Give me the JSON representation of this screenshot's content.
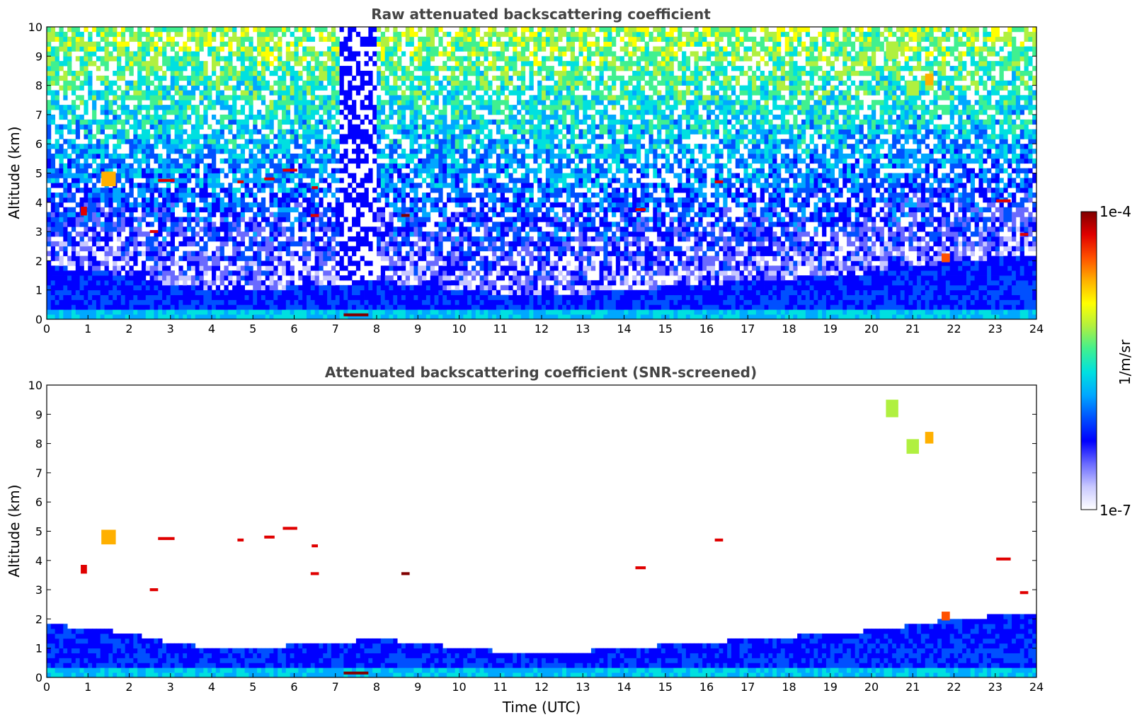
{
  "colors": {
    "colormap": [
      "#ffffff",
      "#c8c8ff",
      "#6a6aff",
      "#0000ff",
      "#0050ff",
      "#00a8ff",
      "#00e0e0",
      "#40f090",
      "#b0f040",
      "#ffff00",
      "#ffb000",
      "#ff5000",
      "#e00000",
      "#800000"
    ],
    "background": "#ffffff",
    "title": "#444444"
  },
  "chart_data": [
    {
      "type": "heatmap",
      "title": "Raw attenuated backscattering coefficient",
      "xlabel": "",
      "ylabel": "Altitude (km)",
      "xlim": [
        0,
        24
      ],
      "ylim": [
        0,
        10
      ],
      "xticks": [
        "0",
        "1",
        "2",
        "3",
        "4",
        "5",
        "6",
        "7",
        "8",
        "9",
        "10",
        "11",
        "12",
        "13",
        "14",
        "15",
        "16",
        "17",
        "18",
        "19",
        "20",
        "21",
        "22",
        "23",
        "24"
      ],
      "yticks": [
        "0",
        "1",
        "2",
        "3",
        "4",
        "5",
        "6",
        "7",
        "8",
        "9",
        "10"
      ],
      "boundary_layer_top_km": [
        [
          0,
          1.8
        ],
        [
          1,
          1.7
        ],
        [
          2,
          1.5
        ],
        [
          3,
          1.2
        ],
        [
          4,
          1.0
        ],
        [
          5,
          1.0
        ],
        [
          6,
          1.1
        ],
        [
          7,
          1.2
        ],
        [
          8,
          1.3
        ],
        [
          9,
          1.2
        ],
        [
          10,
          1.0
        ],
        [
          11,
          0.9
        ],
        [
          12,
          0.9
        ],
        [
          13,
          0.9
        ],
        [
          14,
          1.0
        ],
        [
          15,
          1.1
        ],
        [
          16,
          1.2
        ],
        [
          17,
          1.3
        ],
        [
          18,
          1.4
        ],
        [
          19,
          1.5
        ],
        [
          20,
          1.6
        ],
        [
          21,
          1.8
        ],
        [
          22,
          2.0
        ],
        [
          23,
          2.1
        ],
        [
          23.8,
          2.2
        ]
      ],
      "cloud_layers": [
        {
          "t": 0.9,
          "alt": 3.7,
          "dt": 0.15,
          "dz": 0.3,
          "level": 12
        },
        {
          "t": 1.5,
          "alt": 4.8,
          "dt": 0.35,
          "dz": 0.5,
          "level": 10
        },
        {
          "t": 2.9,
          "alt": 4.75,
          "dt": 0.4,
          "dz": 0.1,
          "level": 12
        },
        {
          "t": 2.6,
          "alt": 3.0,
          "dt": 0.2,
          "dz": 0.1,
          "level": 12
        },
        {
          "t": 4.7,
          "alt": 4.7,
          "dt": 0.15,
          "dz": 0.1,
          "level": 12
        },
        {
          "t": 5.4,
          "alt": 4.8,
          "dt": 0.25,
          "dz": 0.1,
          "level": 12
        },
        {
          "t": 5.9,
          "alt": 5.1,
          "dt": 0.35,
          "dz": 0.1,
          "level": 12
        },
        {
          "t": 6.5,
          "alt": 4.5,
          "dt": 0.15,
          "dz": 0.1,
          "level": 12
        },
        {
          "t": 6.5,
          "alt": 3.55,
          "dt": 0.2,
          "dz": 0.1,
          "level": 12
        },
        {
          "t": 8.7,
          "alt": 3.55,
          "dt": 0.2,
          "dz": 0.1,
          "level": 13
        },
        {
          "t": 14.4,
          "alt": 3.75,
          "dt": 0.25,
          "dz": 0.1,
          "level": 12
        },
        {
          "t": 16.3,
          "alt": 4.7,
          "dt": 0.2,
          "dz": 0.1,
          "level": 12
        },
        {
          "t": 23.2,
          "alt": 4.05,
          "dt": 0.35,
          "dz": 0.1,
          "level": 12
        },
        {
          "t": 23.7,
          "alt": 2.9,
          "dt": 0.2,
          "dz": 0.1,
          "level": 12
        },
        {
          "t": 21.8,
          "alt": 2.1,
          "dt": 0.2,
          "dz": 0.3,
          "level": 11
        },
        {
          "t": 20.5,
          "alt": 9.2,
          "dt": 0.3,
          "dz": 0.6,
          "level": 8
        },
        {
          "t": 21.0,
          "alt": 7.9,
          "dt": 0.3,
          "dz": 0.5,
          "level": 8
        },
        {
          "t": 21.4,
          "alt": 8.2,
          "dt": 0.2,
          "dz": 0.4,
          "level": 10
        },
        {
          "t": 7.5,
          "alt": 0.15,
          "dt": 0.6,
          "dz": 0.1,
          "level": 13
        }
      ]
    },
    {
      "type": "heatmap",
      "title": "Attenuated backscattering coefficient (SNR-screened)",
      "xlabel": "Time (UTC)",
      "ylabel": "Altitude (km)",
      "xlim": [
        0,
        24
      ],
      "ylim": [
        0,
        10
      ],
      "xticks": [
        "0",
        "1",
        "2",
        "3",
        "4",
        "5",
        "6",
        "7",
        "8",
        "9",
        "10",
        "11",
        "12",
        "13",
        "14",
        "15",
        "16",
        "17",
        "18",
        "19",
        "20",
        "21",
        "22",
        "23",
        "24"
      ],
      "yticks": [
        "0",
        "1",
        "2",
        "3",
        "4",
        "5",
        "6",
        "7",
        "8",
        "9",
        "10"
      ]
    }
  ],
  "colorbar": {
    "max_label": "1e-4",
    "min_label": "1e-7",
    "unit_label": "1/m/sr"
  }
}
